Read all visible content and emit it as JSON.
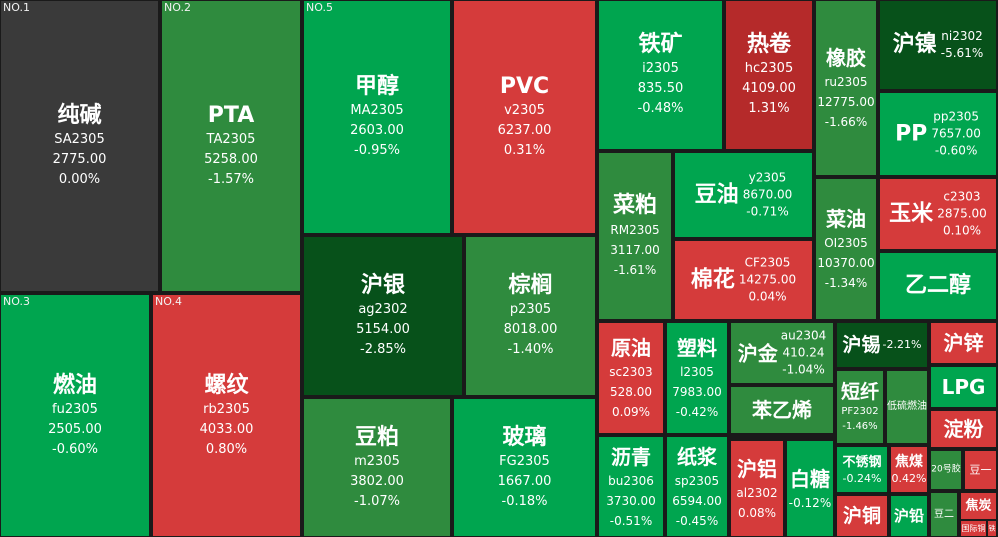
{
  "palette": {
    "gray": "#3a3a3a",
    "green": "#00a54f",
    "green2": "#2f8b3e",
    "green3": "#07511a",
    "red": "#d53b3b",
    "red2": "#b52a2a"
  },
  "tiles": [
    {
      "rank": "NO.1",
      "name": "纯碱",
      "code": "SA2305",
      "price": "2775.00",
      "pct": "0.00%"
    },
    {
      "rank": "NO.2",
      "name": "PTA",
      "code": "TA2305",
      "price": "5258.00",
      "pct": "-1.57%"
    },
    {
      "rank": "NO.5",
      "name": "甲醇",
      "code": "MA2305",
      "price": "2603.00",
      "pct": "-0.95%"
    },
    {
      "name": "PVC",
      "code": "v2305",
      "price": "6237.00",
      "pct": "0.31%"
    },
    {
      "name": "铁矿",
      "code": "i2305",
      "price": "835.50",
      "pct": "-0.48%"
    },
    {
      "name": "热卷",
      "code": "hc2305",
      "price": "4109.00",
      "pct": "1.31%"
    },
    {
      "name": "橡胶",
      "code": "ru2305",
      "price": "12775.00",
      "pct": "-1.66%"
    },
    {
      "name": "沪镍",
      "code": "ni2302",
      "pct": "-5.61%"
    },
    {
      "name": "PP",
      "code": "pp2305",
      "price": "7657.00",
      "pct": "-0.60%"
    },
    {
      "name": "菜粕",
      "code": "RM2305",
      "price": "3117.00",
      "pct": "-1.61%"
    },
    {
      "name": "豆油",
      "code": "y2305",
      "price": "8670.00",
      "pct": "-0.71%"
    },
    {
      "name": "玉米",
      "code": "c2303",
      "price": "2875.00",
      "pct": "0.10%"
    },
    {
      "name": "菜油",
      "code": "OI2305",
      "price": "10370.00",
      "pct": "-1.34%"
    },
    {
      "name": "棉花",
      "code": "CF2305",
      "price": "14275.00",
      "pct": "0.04%"
    },
    {
      "name": "乙二醇"
    },
    {
      "name": "沪银",
      "code": "ag2302",
      "price": "5154.00",
      "pct": "-2.85%"
    },
    {
      "name": "棕榈",
      "code": "p2305",
      "price": "8018.00",
      "pct": "-1.40%"
    },
    {
      "rank": "NO.3",
      "name": "燃油",
      "code": "fu2305",
      "price": "2505.00",
      "pct": "-0.60%"
    },
    {
      "rank": "NO.4",
      "name": "螺纹",
      "code": "rb2305",
      "price": "4033.00",
      "pct": "0.80%"
    },
    {
      "name": "原油",
      "code": "sc2303",
      "price": "528.00",
      "pct": "0.09%"
    },
    {
      "name": "塑料",
      "code": "l2305",
      "price": "7983.00",
      "pct": "-0.42%"
    },
    {
      "name": "沪金",
      "code": "au2304",
      "price": "410.24",
      "pct": "-1.04%"
    },
    {
      "name": "沪锡",
      "pct": "-2.21%"
    },
    {
      "name": "沪锌"
    },
    {
      "name": "LPG"
    },
    {
      "name": "豆粕",
      "code": "m2305",
      "price": "3802.00",
      "pct": "-1.07%"
    },
    {
      "name": "玻璃",
      "code": "FG2305",
      "price": "1667.00",
      "pct": "-0.18%"
    },
    {
      "name": "苯乙烯"
    },
    {
      "name": "短纤",
      "code": "PF2302",
      "pct": "-1.46%"
    },
    {
      "name": "低硫燃油"
    },
    {
      "name": "淀粉"
    },
    {
      "name": "沥青",
      "code": "bu2306",
      "price": "3730.00",
      "pct": "-0.51%"
    },
    {
      "name": "纸浆",
      "code": "sp2305",
      "price": "6594.00",
      "pct": "-0.45%"
    },
    {
      "name": "沪铝",
      "code": "al2302",
      "price": "0.08%"
    },
    {
      "name": "白糖",
      "pct": "-0.12%"
    },
    {
      "name": "不锈钢",
      "pct": "-0.24%"
    },
    {
      "name": "焦煤",
      "pct": "0.42%"
    },
    {
      "name": "20号胶"
    },
    {
      "name": "豆一"
    },
    {
      "name": "沪铜"
    },
    {
      "name": "沪铅"
    },
    {
      "name": "豆二"
    },
    {
      "name": "焦炭"
    },
    {
      "name": "国际铜"
    },
    {
      "name": "铁"
    }
  ]
}
